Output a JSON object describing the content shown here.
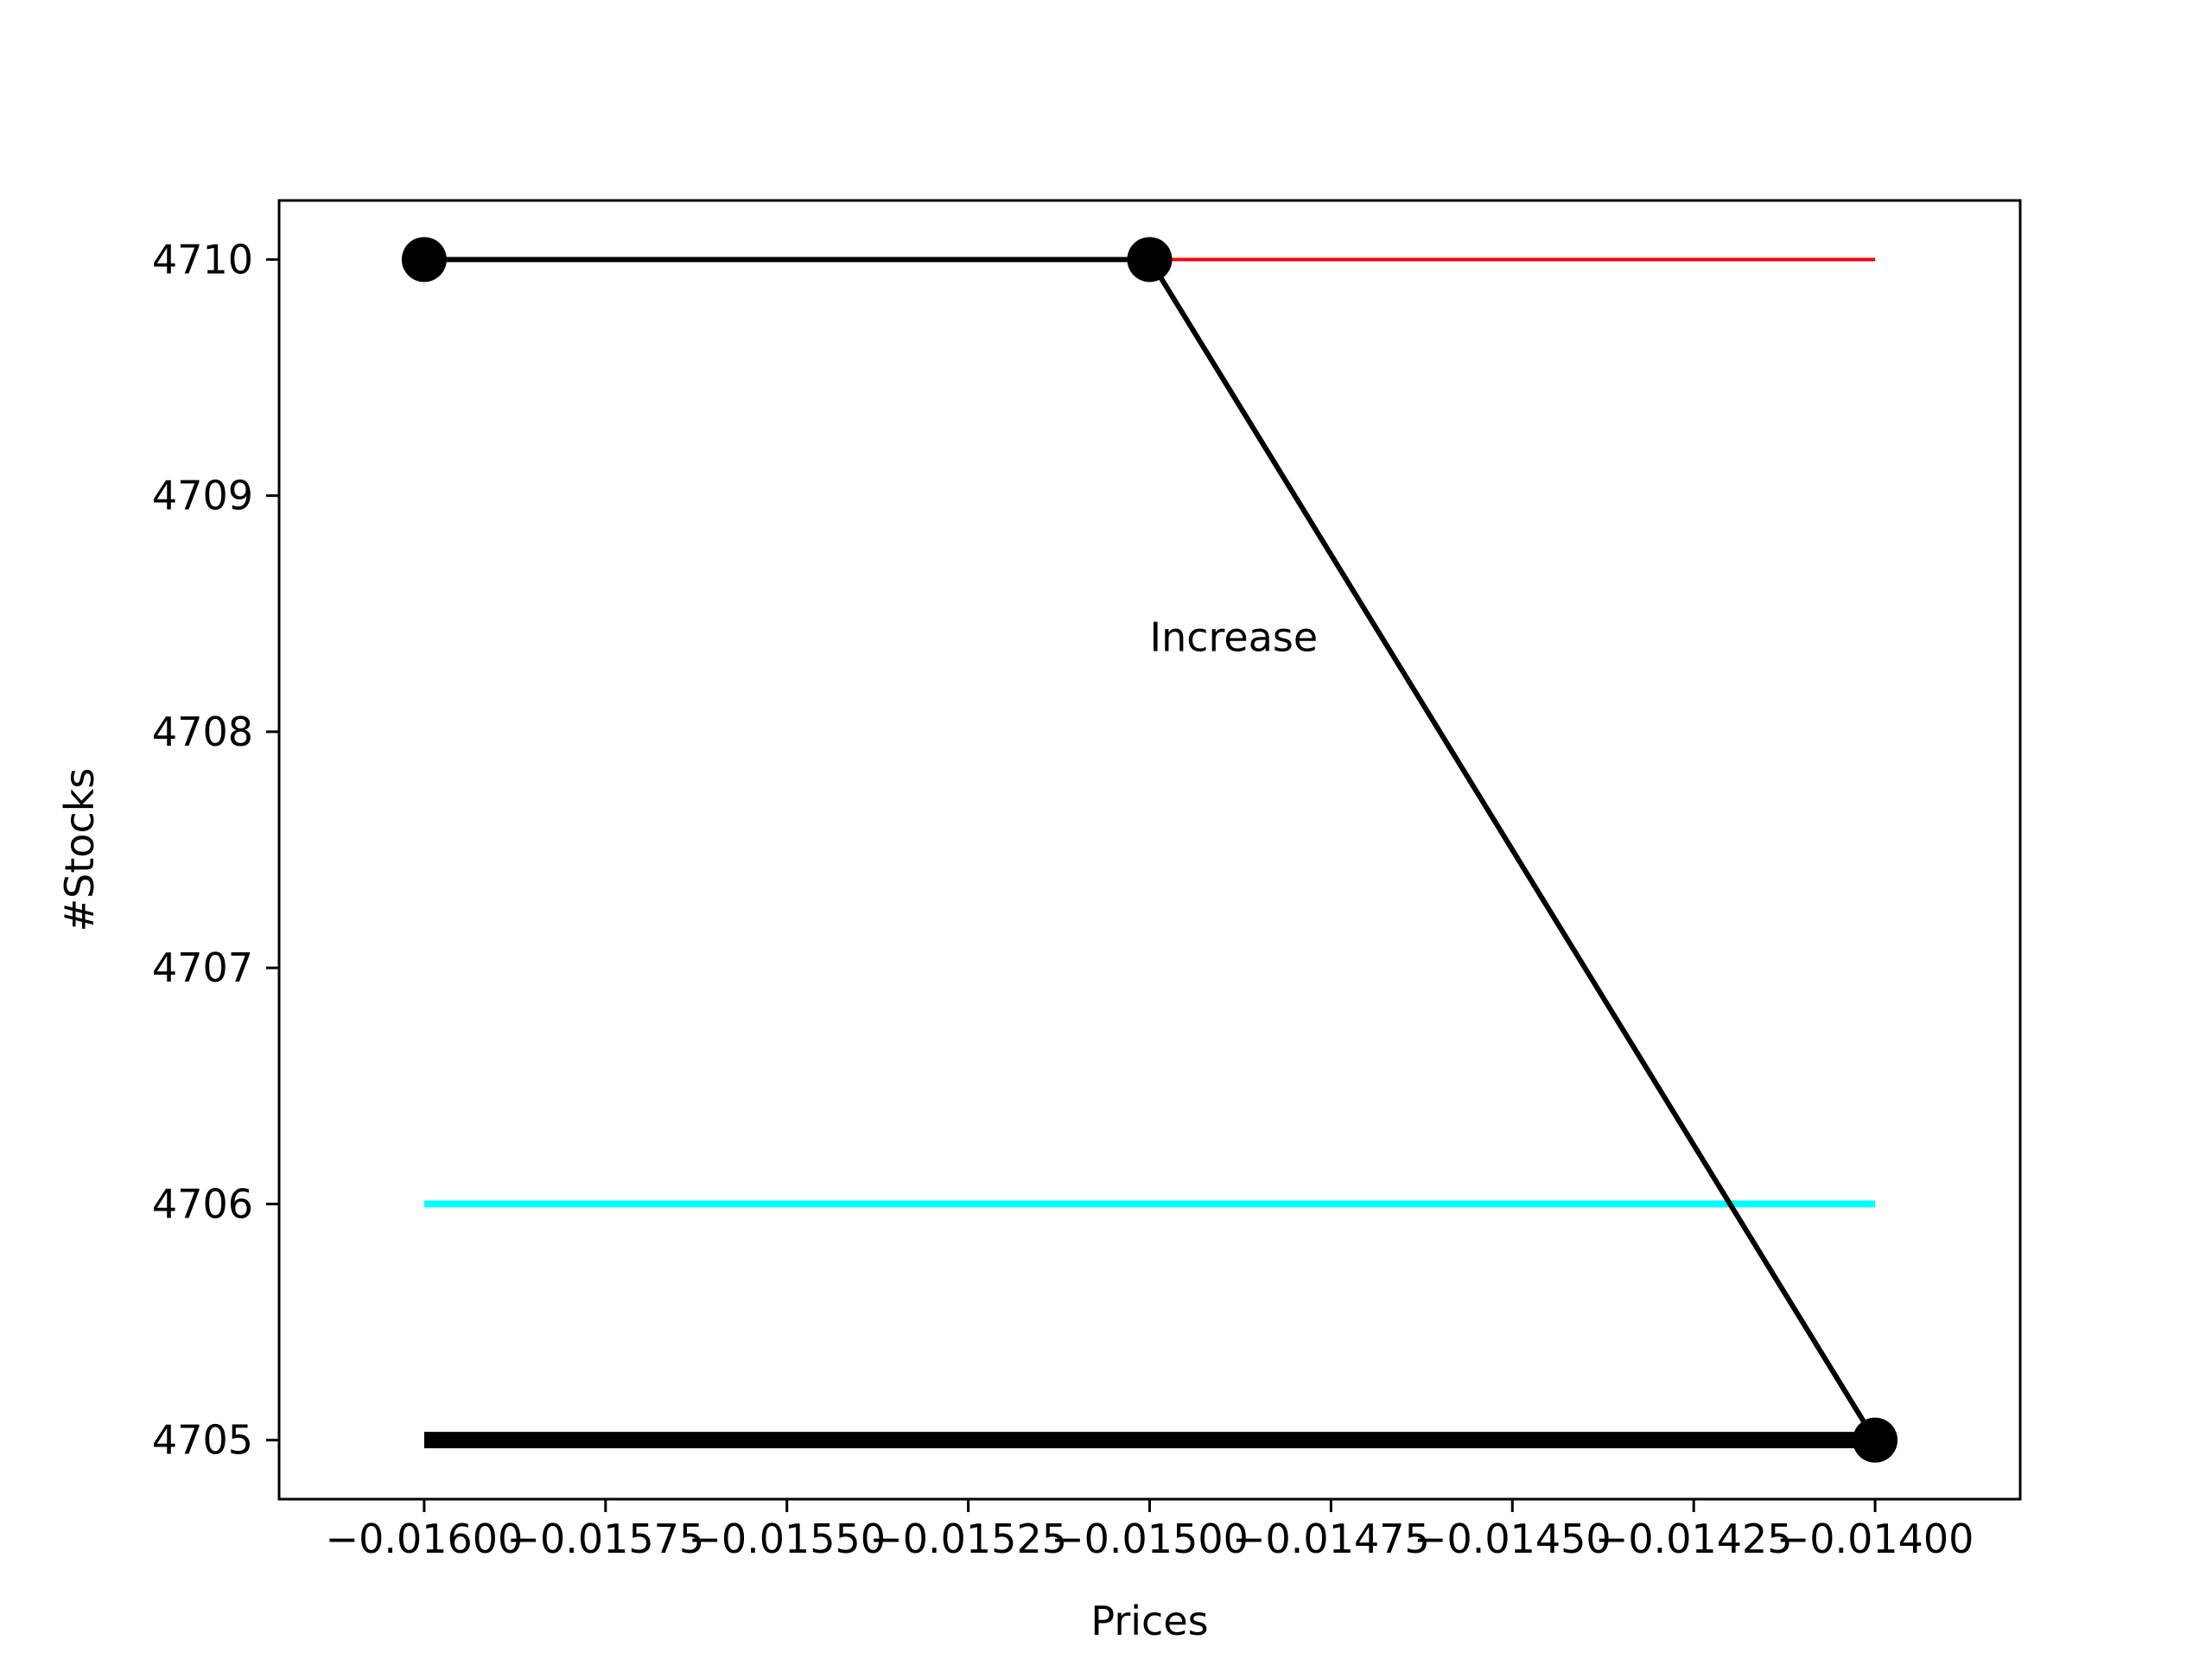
{
  "chart_data": {
    "type": "line",
    "title": "",
    "xlabel": "Prices",
    "ylabel": "#Stocks",
    "xlim": [
      -0.0162,
      -0.0138
    ],
    "ylim": [
      4704.75,
      4710.25
    ],
    "x_ticks": [
      -0.016,
      -0.01575,
      -0.0155,
      -0.01525,
      -0.015,
      -0.01475,
      -0.0145,
      -0.01425,
      -0.014
    ],
    "x_tick_labels": [
      "−0.01600",
      "−0.01575",
      "−0.01550",
      "−0.01525",
      "−0.01500",
      "−0.01475",
      "−0.01450",
      "−0.01425",
      "−0.01400"
    ],
    "y_ticks": [
      4705,
      4706,
      4707,
      4708,
      4709,
      4710
    ],
    "y_tick_labels": [
      "4705",
      "4706",
      "4707",
      "4708",
      "4709",
      "4710"
    ],
    "grid": false,
    "series": [
      {
        "style": "thick-line",
        "color": "#000000",
        "x": [
          -0.016,
          -0.014
        ],
        "y": [
          4705,
          4705
        ]
      },
      {
        "style": "line",
        "color": "#00ffff",
        "x": [
          -0.016,
          -0.014
        ],
        "y": [
          4706,
          4706
        ]
      },
      {
        "style": "thin-line",
        "color": "#ff0000",
        "x": [
          -0.015,
          -0.014
        ],
        "y": [
          4710,
          4710
        ]
      },
      {
        "style": "line-markers",
        "color": "#000000",
        "x": [
          -0.016,
          -0.015,
          -0.014
        ],
        "y": [
          4710,
          4710,
          4705
        ]
      }
    ],
    "annotations": [
      {
        "text": "Increase",
        "x": -0.015,
        "y": 4708.4
      }
    ]
  }
}
